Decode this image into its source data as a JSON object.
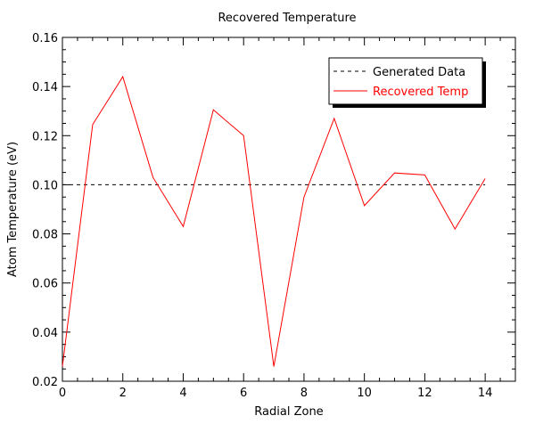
{
  "chart_data": {
    "type": "line",
    "title": "Recovered Temperature",
    "xlabel": "Radial Zone",
    "ylabel": "Atom Temperature (eV)",
    "xlim": [
      0,
      15
    ],
    "ylim": [
      0.02,
      0.16
    ],
    "xticks": [
      0,
      2,
      4,
      6,
      8,
      10,
      12,
      14
    ],
    "xtick_labels": [
      "0",
      "2",
      "4",
      "6",
      "8",
      "10",
      "12",
      "14"
    ],
    "yticks": [
      0.02,
      0.04,
      0.06,
      0.08,
      0.1,
      0.12,
      0.14,
      0.16
    ],
    "ytick_labels": [
      "0.02",
      "0.04",
      "0.06",
      "0.08",
      "0.10",
      "0.12",
      "0.14",
      "0.16"
    ],
    "grid": false,
    "legend_position": "top-right",
    "series": [
      {
        "name": "Generated Data",
        "color": "#000000",
        "style": "dashed",
        "x": [
          0,
          14
        ],
        "y": [
          0.1,
          0.1
        ]
      },
      {
        "name": "Recovered Temp",
        "color": "#ff0000",
        "style": "solid",
        "x": [
          0,
          1,
          2,
          3,
          4,
          5,
          6,
          7,
          8,
          9,
          10,
          11,
          12,
          13,
          14
        ],
        "y": [
          0.026,
          0.1245,
          0.144,
          0.103,
          0.083,
          0.1305,
          0.12,
          0.026,
          0.095,
          0.127,
          0.0915,
          0.1048,
          0.104,
          0.082,
          0.1025
        ]
      }
    ]
  }
}
